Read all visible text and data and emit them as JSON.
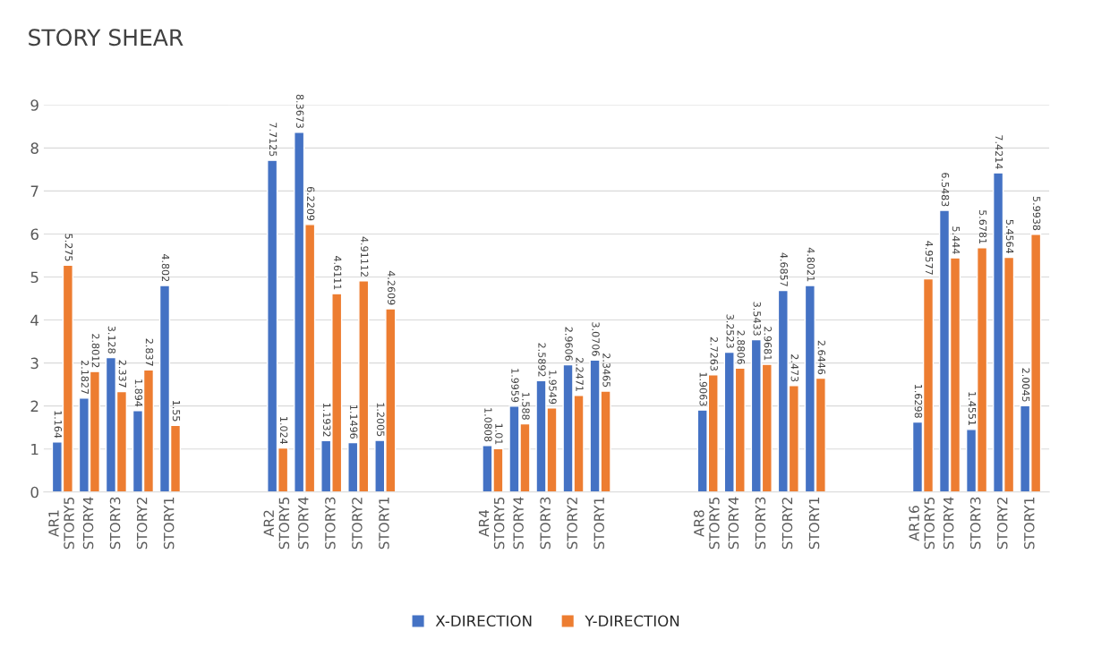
{
  "chart_data": {
    "type": "bar",
    "title": "STORY SHEAR",
    "categories": [
      "AR1\nSTORY5",
      "STORY4",
      "STORY3",
      "STORY2",
      "STORY1",
      null,
      null,
      null,
      "AR2\nSTORY5",
      "STORY4",
      "STORY3",
      "STORY2",
      "STORY1",
      null,
      null,
      null,
      "AR4\nSTORY5",
      "STORY4",
      "STORY3",
      "STORY2",
      "STORY1",
      null,
      null,
      null,
      "AR8\nSTORY5",
      "STORY4",
      "STORY3",
      "STORY2",
      "STORY1",
      null,
      null,
      null,
      "AR16\nSTORY5",
      "STORY4",
      "STORY3",
      "STORY2",
      "STORY1"
    ],
    "series": [
      {
        "name": "X-DIRECTION",
        "color": "#4472c4",
        "values": [
          1.164,
          2.1827,
          3.128,
          1.894,
          4.802,
          null,
          null,
          null,
          7.7125,
          8.3673,
          1.1932,
          1.1496,
          1.2005,
          null,
          null,
          null,
          1.0808,
          1.9959,
          2.5892,
          2.9606,
          3.0706,
          null,
          null,
          null,
          1.9063,
          3.2523,
          3.5433,
          4.6857,
          4.8021,
          null,
          null,
          null,
          1.6298,
          6.5483,
          1.4551,
          7.4214,
          2.0045
        ]
      },
      {
        "name": "Y-DIRECTION",
        "color": "#ed7d31",
        "values": [
          5.275,
          2.8012,
          2.337,
          2.837,
          1.55,
          null,
          null,
          null,
          1.024,
          6.2209,
          4.6111,
          4.91112,
          4.2609,
          null,
          null,
          null,
          1.01,
          1.588,
          1.9549,
          2.2471,
          2.3465,
          null,
          null,
          null,
          2.7263,
          2.8806,
          2.9681,
          2.473,
          2.6446,
          null,
          null,
          null,
          4.9577,
          5.444,
          5.6781,
          5.4564,
          5.9938
        ]
      }
    ],
    "ylim": [
      0,
      9
    ],
    "yticks": [
      0,
      1,
      2,
      3,
      4,
      5,
      6,
      7,
      8,
      9
    ],
    "grid": "y",
    "legend": "bottom",
    "data_labels": true
  }
}
